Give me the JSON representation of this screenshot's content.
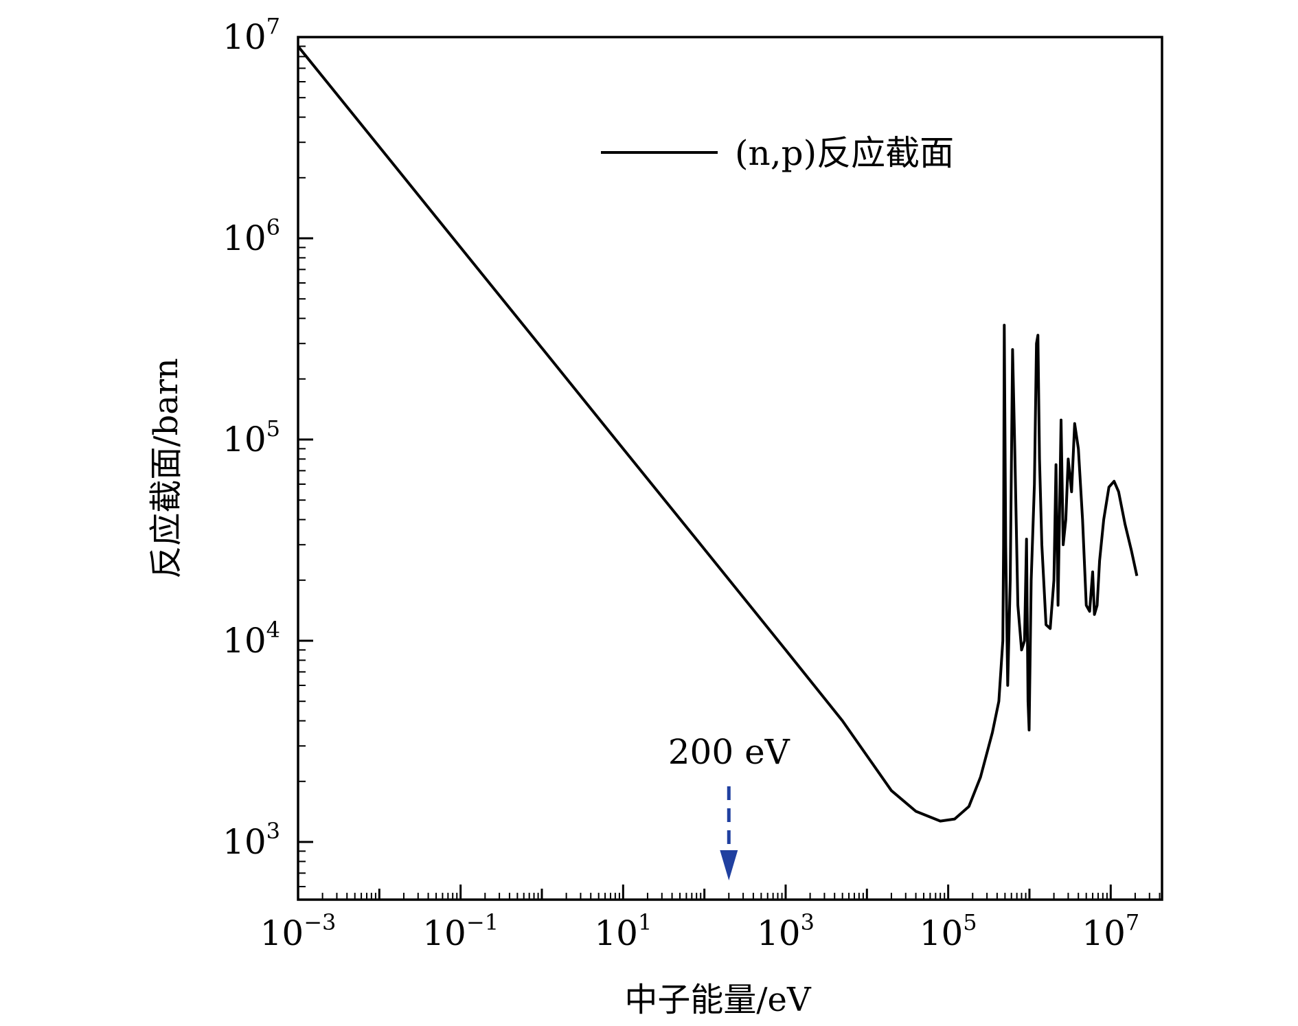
{
  "chart_data": {
    "type": "line",
    "title": "",
    "xlabel": "中子能量/eV",
    "ylabel": "反应截面/barn",
    "xscale": "log",
    "yscale": "log",
    "xlim": [
      0.001,
      50000000
    ],
    "ylim": [
      500,
      10000000
    ],
    "x_ticks": [
      {
        "base": "10",
        "exp": "−3",
        "value": 0.001
      },
      {
        "base": "10",
        "exp": "−1",
        "value": 0.1
      },
      {
        "base": "10",
        "exp": "1",
        "value": 10
      },
      {
        "base": "10",
        "exp": "3",
        "value": 1000
      },
      {
        "base": "10",
        "exp": "5",
        "value": 100000
      },
      {
        "base": "10",
        "exp": "7",
        "value": 10000000
      }
    ],
    "y_ticks": [
      {
        "base": "10",
        "exp": "3",
        "value": 1000
      },
      {
        "base": "10",
        "exp": "4",
        "value": 10000
      },
      {
        "base": "10",
        "exp": "5",
        "value": 100000
      },
      {
        "base": "10",
        "exp": "6",
        "value": 1000000
      },
      {
        "base": "10",
        "exp": "7",
        "value": 10000000
      }
    ],
    "legend": {
      "position": "top-center",
      "entries": [
        "(n,p)反应截面"
      ]
    },
    "annotation": {
      "text": "200 eV",
      "x": 200,
      "arrow_color": "#2040a0"
    },
    "series": [
      {
        "name": "(n,p)反应截面",
        "color": "#000000",
        "points": [
          [
            0.001,
            9000000
          ],
          [
            0.01,
            2850000
          ],
          [
            0.1,
            900000
          ],
          [
            1,
            285000
          ],
          [
            10,
            90000
          ],
          [
            100,
            28500
          ],
          [
            1000,
            9000
          ],
          [
            5000,
            4000
          ],
          [
            20000,
            1800
          ],
          [
            40000,
            1420
          ],
          [
            80000,
            1270
          ],
          [
            120000,
            1300
          ],
          [
            180000,
            1500
          ],
          [
            250000,
            2100
          ],
          [
            350000,
            3500
          ],
          [
            420000,
            5000
          ],
          [
            470000,
            10000
          ],
          [
            480000,
            30000
          ],
          [
            490000,
            370000
          ],
          [
            510000,
            30000
          ],
          [
            540000,
            6000
          ],
          [
            580000,
            20000
          ],
          [
            620000,
            280000
          ],
          [
            660000,
            90000
          ],
          [
            720000,
            15000
          ],
          [
            800000,
            9000
          ],
          [
            870000,
            10000
          ],
          [
            920000,
            32000
          ],
          [
            960000,
            5000
          ],
          [
            990000,
            3600
          ],
          [
            1050000,
            20000
          ],
          [
            1150000,
            60000
          ],
          [
            1220000,
            300000
          ],
          [
            1270000,
            330000
          ],
          [
            1330000,
            80000
          ],
          [
            1420000,
            30000
          ],
          [
            1600000,
            12000
          ],
          [
            1800000,
            11500
          ],
          [
            2000000,
            20000
          ],
          [
            2120000,
            75000
          ],
          [
            2250000,
            15000
          ],
          [
            2450000,
            125000
          ],
          [
            2600000,
            30000
          ],
          [
            2800000,
            40000
          ],
          [
            3000000,
            80000
          ],
          [
            3300000,
            55000
          ],
          [
            3600000,
            120000
          ],
          [
            4000000,
            90000
          ],
          [
            4500000,
            40000
          ],
          [
            5000000,
            15000
          ],
          [
            5500000,
            14000
          ],
          [
            6000000,
            22000
          ],
          [
            6300000,
            13500
          ],
          [
            6800000,
            15000
          ],
          [
            7300000,
            25000
          ],
          [
            8200000,
            40000
          ],
          [
            9500000,
            58000
          ],
          [
            11000000,
            62000
          ],
          [
            12500000,
            55000
          ],
          [
            15000000,
            38000
          ],
          [
            18000000,
            28000
          ],
          [
            21000000,
            21000
          ]
        ]
      }
    ]
  }
}
